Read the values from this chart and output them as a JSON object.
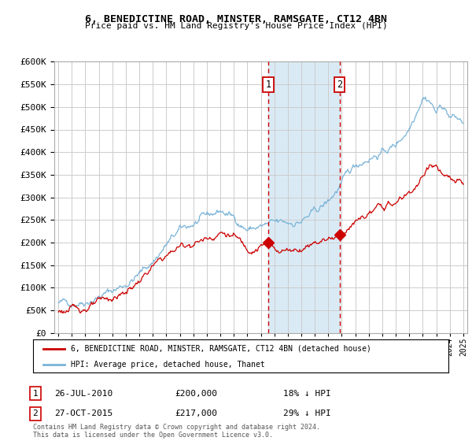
{
  "title": "6, BENEDICTINE ROAD, MINSTER, RAMSGATE, CT12 4BN",
  "subtitle": "Price paid vs. HM Land Registry's House Price Index (HPI)",
  "legend_line1": "6, BENEDICTINE ROAD, MINSTER, RAMSGATE, CT12 4BN (detached house)",
  "legend_line2": "HPI: Average price, detached house, Thanet",
  "footnote": "Contains HM Land Registry data © Crown copyright and database right 2024.\nThis data is licensed under the Open Government Licence v3.0.",
  "sale1_date": "26-JUL-2010",
  "sale1_price": "£200,000",
  "sale1_hpi": "18% ↓ HPI",
  "sale2_date": "27-OCT-2015",
  "sale2_price": "£217,000",
  "sale2_hpi": "29% ↓ HPI",
  "ylim": [
    0,
    600000
  ],
  "yticks": [
    0,
    50000,
    100000,
    150000,
    200000,
    250000,
    300000,
    350000,
    400000,
    450000,
    500000,
    550000,
    600000
  ],
  "xlim_start": 1994.7,
  "xlim_end": 2025.3,
  "sale1_x": 2010.56,
  "sale1_y": 200000,
  "sale2_x": 2015.83,
  "sale2_y": 217000,
  "hpi_color": "#7ab4d8",
  "price_color": "#cc0000",
  "shade_color": "#daeaf5",
  "grid_color": "#cccccc",
  "background_color": "#ffffff"
}
